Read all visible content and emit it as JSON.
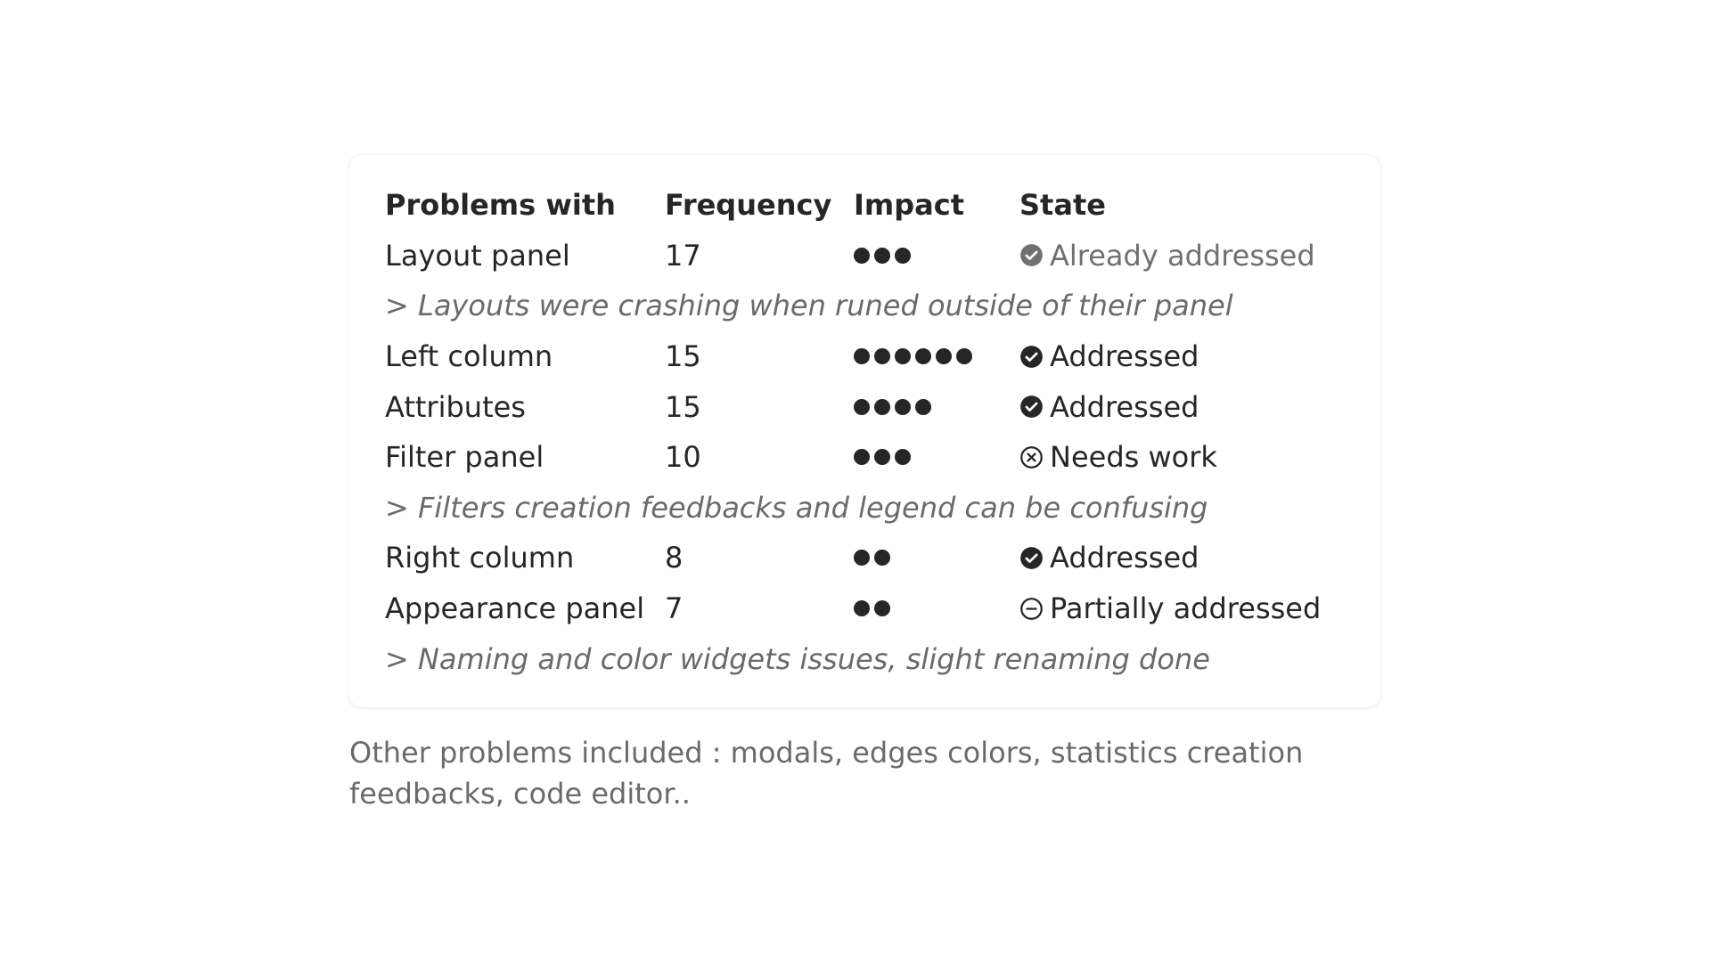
{
  "table": {
    "headers": [
      "Problems with",
      "Frequency",
      "Impact",
      "State"
    ],
    "rows": [
      {
        "type": "item",
        "problem": "Layout panel",
        "frequency": "17",
        "impact": 3,
        "state": "Already addressed",
        "state_icon": "check-circle-gray-icon",
        "faded": true
      },
      {
        "type": "note",
        "text": "> Layouts were crashing when runed outside of their panel"
      },
      {
        "type": "item",
        "problem": "Left column",
        "frequency": "15",
        "impact": 6,
        "state": "Addressed",
        "state_icon": "check-circle-icon"
      },
      {
        "type": "item",
        "problem": "Attributes",
        "frequency": "15",
        "impact": 4,
        "state": "Addressed",
        "state_icon": "check-circle-icon"
      },
      {
        "type": "item",
        "problem": "Filter panel",
        "frequency": "10",
        "impact": 3,
        "state": "Needs work",
        "state_icon": "x-circle-icon"
      },
      {
        "type": "note",
        "text": "> Filters creation feedbacks and legend can be confusing"
      },
      {
        "type": "item",
        "problem": "Right column",
        "frequency": "8",
        "impact": 2,
        "state": "Addressed",
        "state_icon": "check-circle-icon"
      },
      {
        "type": "item",
        "problem": "Appearance panel",
        "frequency": "7",
        "impact": 2,
        "state": "Partially addressed",
        "state_icon": "minus-circle-icon"
      },
      {
        "type": "note",
        "text": "> Naming and color widgets issues, slight renaming done"
      }
    ]
  },
  "footer": {
    "text": "Other problems included : modals, edges colors, statistics creation feedbacks, code editor.."
  },
  "colors": {
    "text": "#262626",
    "muted": "#6a6a6a",
    "faded_icon": "#707070"
  }
}
